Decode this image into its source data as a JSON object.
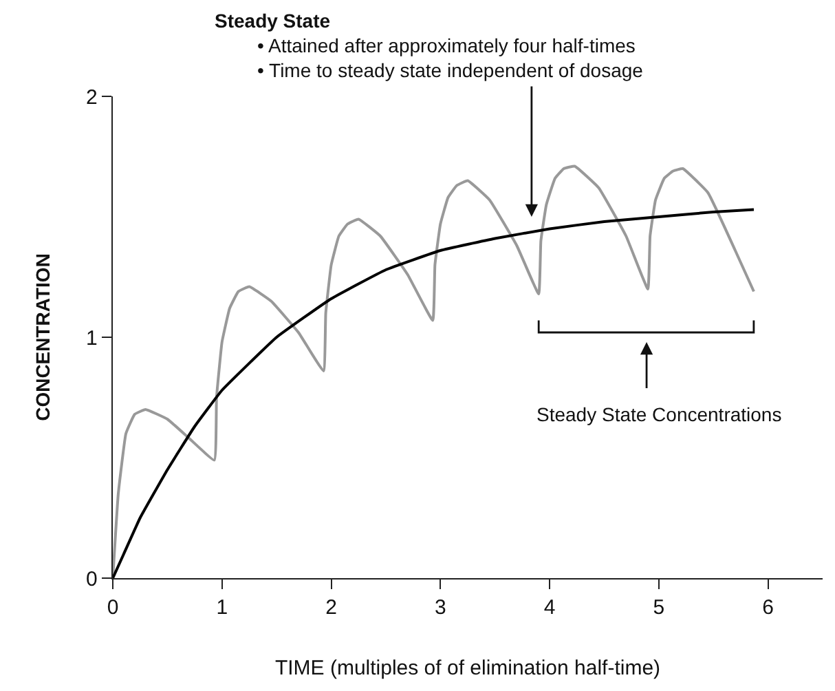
{
  "chart_data": {
    "type": "line",
    "title": "Steady State",
    "xlabel": "TIME (multiples of of elimination half-time)",
    "ylabel": "CONCENTRATION",
    "xlim": [
      0,
      6.5
    ],
    "xticks": [
      0,
      1,
      2,
      3,
      4,
      5,
      6
    ],
    "ylim": [
      0,
      2
    ],
    "yticks": [
      0,
      1,
      2
    ],
    "marker": "none",
    "line_style": "solid",
    "annotations": [
      "• Attained after approximately four half-times",
      "• Time to steady state independent of dosage",
      "Steady State Concentrations"
    ],
    "series": [
      {
        "color": "#999999",
        "x": [
          0,
          0.05,
          0.12,
          0.2,
          0.3,
          0.5,
          0.7,
          0.93,
          0.95,
          1.0,
          1.07,
          1.15,
          1.25,
          1.45,
          1.7,
          1.93,
          1.95,
          2.0,
          2.07,
          2.15,
          2.25,
          2.45,
          2.7,
          2.93,
          2.95,
          3.0,
          3.07,
          3.15,
          3.25,
          3.45,
          3.7,
          3.9,
          3.92,
          3.97,
          4.05,
          4.13,
          4.23,
          4.45,
          4.7,
          4.9,
          4.92,
          4.97,
          5.05,
          5.13,
          5.22,
          5.45,
          5.7,
          5.87
        ],
        "values": [
          0,
          0.35,
          0.6,
          0.68,
          0.7,
          0.66,
          0.58,
          0.49,
          0.75,
          0.98,
          1.12,
          1.19,
          1.21,
          1.15,
          1.02,
          0.86,
          1.1,
          1.3,
          1.42,
          1.47,
          1.49,
          1.42,
          1.26,
          1.07,
          1.3,
          1.47,
          1.58,
          1.63,
          1.65,
          1.57,
          1.38,
          1.18,
          1.4,
          1.55,
          1.66,
          1.7,
          1.71,
          1.62,
          1.42,
          1.2,
          1.42,
          1.57,
          1.66,
          1.69,
          1.7,
          1.6,
          1.36,
          1.19
        ]
      },
      {
        "color": "#000000",
        "x": [
          0,
          0.1,
          0.25,
          0.5,
          0.75,
          1,
          1.5,
          2,
          2.5,
          3,
          3.5,
          4,
          4.5,
          5,
          5.5,
          5.87
        ],
        "values": [
          0,
          0.1,
          0.25,
          0.45,
          0.63,
          0.78,
          1.0,
          1.16,
          1.28,
          1.36,
          1.41,
          1.45,
          1.48,
          1.5,
          1.52,
          1.53
        ]
      }
    ]
  }
}
